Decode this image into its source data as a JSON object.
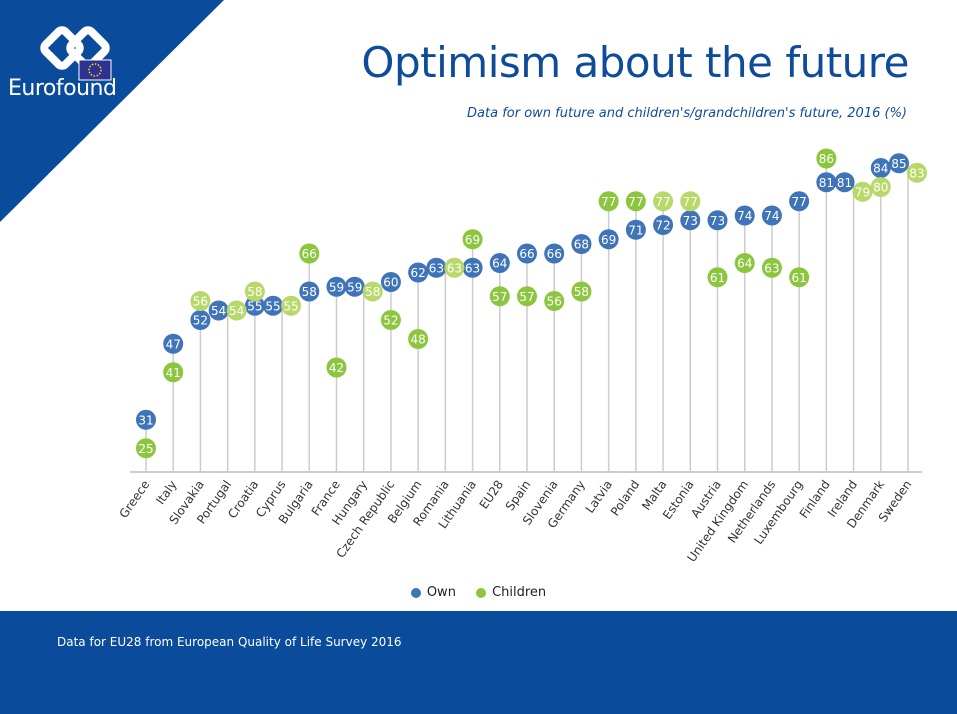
{
  "brand": {
    "name": "Eurofound"
  },
  "colors": {
    "brand_blue": "#0a4c9b",
    "own": "#3f74b8",
    "children": "#8cc63f",
    "children_light": "#b8d96a",
    "axis": "#999999",
    "stem": "#cccccc"
  },
  "footer": {
    "note": "Data for EU28 from European Quality of Life Survey 2016"
  },
  "chart_data": {
    "type": "scatter",
    "title": "Optimism about the future",
    "subtitle": "Data for own future and children's/grandchildren's future, 2016 (%)",
    "categories": [
      "Greece",
      "Italy",
      "Slovakia",
      "Portugal",
      "Croatia",
      "Cyprus",
      "Bulgaria",
      "France",
      "Hungary",
      "Czech Republic",
      "Belgium",
      "Romania",
      "Lithuania",
      "EU28",
      "Spain",
      "Slovenia",
      "Germany",
      "Latvia",
      "Poland",
      "Malta",
      "Estonia",
      "Austria",
      "United Kingdom",
      "Netherlands",
      "Luxembourg",
      "Finland",
      "Ireland",
      "Denmark",
      "Sweden"
    ],
    "series": [
      {
        "name": "Own",
        "values": [
          31,
          47,
          52,
          54,
          55,
          55,
          58,
          59,
          59,
          60,
          62,
          63,
          63,
          64,
          66,
          66,
          68,
          69,
          71,
          72,
          73,
          73,
          74,
          74,
          77,
          81,
          81,
          84,
          85
        ]
      },
      {
        "name": "Children",
        "values": [
          25,
          41,
          56,
          54,
          58,
          55,
          66,
          42,
          58,
          52,
          48,
          63,
          69,
          57,
          57,
          56,
          58,
          77,
          77,
          77,
          77,
          61,
          64,
          63,
          61,
          86,
          79,
          80,
          83
        ],
        "light_shade": [
          false,
          false,
          true,
          true,
          true,
          true,
          false,
          false,
          true,
          false,
          false,
          true,
          false,
          false,
          false,
          false,
          false,
          false,
          false,
          true,
          true,
          false,
          false,
          false,
          false,
          false,
          true,
          true,
          true
        ]
      }
    ],
    "legend": "bottom-center",
    "grid": false
  }
}
